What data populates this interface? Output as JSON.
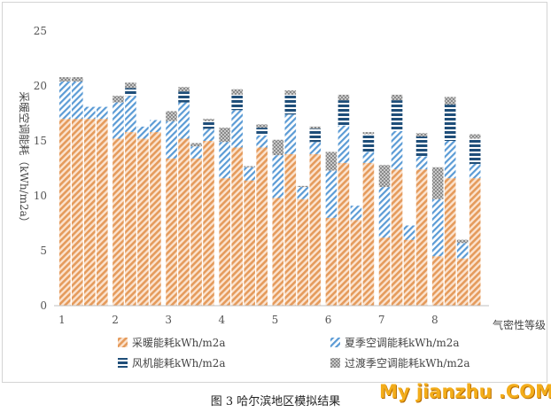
{
  "chart_data": {
    "type": "bar",
    "stacked": true,
    "title": "",
    "ylabel": "采暖空调能耗（kWh/m2a）",
    "xlabel": "气密性等级",
    "ylim": [
      0,
      25
    ],
    "yticks": [
      0,
      5,
      10,
      15,
      20,
      25
    ],
    "categories": [
      "1",
      "2",
      "3",
      "4",
      "5",
      "6",
      "7",
      "8"
    ],
    "bars_per_group": 4,
    "grid": false,
    "legend_position": "bottom",
    "series": [
      {
        "name": "采暖能耗kWh/m2a",
        "color": "#e59b5c",
        "pattern": "diag-orange",
        "values": [
          [
            17.0,
            17.0,
            17.0,
            17.0
          ],
          [
            15.2,
            15.8,
            15.2,
            15.8
          ],
          [
            13.4,
            15.2,
            13.4,
            15.0
          ],
          [
            11.6,
            14.4,
            11.4,
            14.4
          ],
          [
            9.8,
            13.8,
            9.7,
            13.8
          ],
          [
            8.0,
            13.0,
            7.8,
            13.0
          ],
          [
            6.2,
            12.4,
            6.0,
            12.4
          ],
          [
            4.5,
            11.6,
            4.3,
            11.6
          ]
        ]
      },
      {
        "name": "夏季空调能耗kWh/m2a",
        "color": "#5b9bd5",
        "pattern": "diag-blue",
        "values": [
          [
            3.4,
            3.4,
            1.1,
            1.1
          ],
          [
            3.3,
            3.3,
            1.1,
            1.1
          ],
          [
            3.4,
            3.3,
            1.1,
            1.1
          ],
          [
            3.3,
            3.4,
            1.2,
            1.1
          ],
          [
            3.9,
            3.6,
            1.1,
            1.1
          ],
          [
            4.3,
            3.4,
            1.3,
            1.0
          ],
          [
            4.6,
            3.5,
            1.3,
            1.2
          ],
          [
            5.2,
            3.4,
            1.4,
            1.3
          ]
        ]
      },
      {
        "name": "风机能耗kWh/m2a",
        "color": "#1f4e79",
        "pattern": "horiz-navy",
        "values": [
          [
            0,
            0,
            0,
            0
          ],
          [
            0,
            0.7,
            0,
            0
          ],
          [
            0,
            1.0,
            0,
            0.7
          ],
          [
            0,
            1.4,
            0,
            0.7
          ],
          [
            0,
            1.8,
            0,
            1.2
          ],
          [
            0,
            2.3,
            0,
            1.6
          ],
          [
            0,
            2.8,
            0,
            1.8
          ],
          [
            0,
            3.3,
            0,
            2.3
          ]
        ]
      },
      {
        "name": "过渡季空调能耗kWh/m2a",
        "color": "#9e9e9e",
        "pattern": "dots-grey",
        "values": [
          [
            0.4,
            0.4,
            0,
            0
          ],
          [
            0.6,
            0.5,
            0,
            0
          ],
          [
            0.9,
            0.4,
            0.3,
            0.2
          ],
          [
            1.3,
            0.5,
            0.1,
            0.3
          ],
          [
            1.4,
            0.4,
            0.1,
            0.2
          ],
          [
            1.7,
            0.5,
            0,
            0.2
          ],
          [
            2.0,
            0.5,
            0,
            0.3
          ],
          [
            2.9,
            0.7,
            0.3,
            0.4
          ]
        ]
      }
    ]
  },
  "caption": "图 3  哈尔滨地区模拟结果",
  "watermark": "My jianzhu .COM"
}
